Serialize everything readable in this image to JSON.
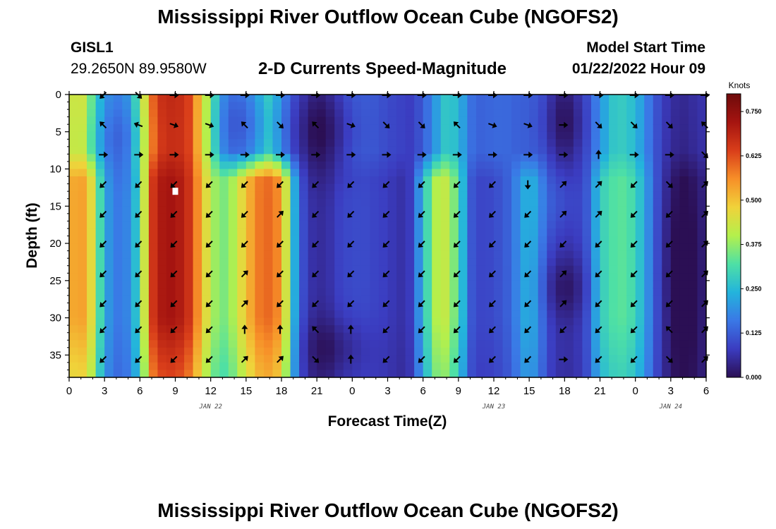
{
  "page": {
    "title": "Mississippi River Outflow Ocean Cube (NGOFS2)",
    "title_repeat": "Mississippi River Outflow Ocean Cube (NGOFS2)",
    "station_id": "GISL1",
    "station_coords": "29.2650N  89.9580W",
    "product": "2-D Currents Speed-Magnitude",
    "model_start_label": "Model Start Time",
    "model_start_time": "01/22/2022 Hour 09"
  },
  "chart_data": {
    "type": "heatmap",
    "title": "2-D Currents Speed-Magnitude",
    "xlabel": "Forecast Time(Z)",
    "ylabel": "Depth (ft)",
    "x_ticks": [
      "0",
      "3",
      "6",
      "9",
      "12",
      "15",
      "18",
      "21",
      "0",
      "3",
      "6",
      "9",
      "12",
      "15",
      "18",
      "21",
      "0",
      "3",
      "6"
    ],
    "day_labels": [
      {
        "text": "JAN 22",
        "x_index": 4
      },
      {
        "text": "JAN 23",
        "x_index": 12
      },
      {
        "text": "JAN 24",
        "x_index": 17
      }
    ],
    "y_ticks": [
      "0",
      "5",
      "10",
      "15",
      "20",
      "25",
      "30",
      "35"
    ],
    "ylim": [
      0,
      38
    ],
    "xlim_hours": [
      0,
      54
    ],
    "colorbar": {
      "unit": "Knots",
      "range": [
        0,
        0.8
      ],
      "ticks": [
        "0.000",
        "0.125",
        "0.250",
        "0.375",
        "0.500",
        "0.625",
        "0.750"
      ],
      "colors": [
        "#2b0f54",
        "#3b3cc0",
        "#3a78e6",
        "#23b4dc",
        "#4ee0a5",
        "#b4f04c",
        "#f0d23a",
        "#f78f28",
        "#d93e1a",
        "#a51410",
        "#6e0b0b"
      ]
    },
    "arrow_rows_depth_ft": [
      0,
      4,
      8,
      12,
      16,
      20,
      24,
      28,
      31.5,
      35.5
    ],
    "arrow_cols_hours": [
      3,
      6,
      9,
      12,
      15,
      18,
      21,
      24,
      27,
      30,
      33,
      36,
      39,
      42,
      45,
      48,
      51,
      54
    ],
    "speed_profiles": {
      "surface_0_9ft": [
        [
          0,
          0.42
        ],
        [
          1,
          0.45
        ],
        [
          2,
          0.33
        ],
        [
          3,
          0.2
        ],
        [
          4,
          0.17
        ],
        [
          5,
          0.2
        ],
        [
          6,
          0.35
        ],
        [
          7,
          0.6
        ],
        [
          8,
          0.68
        ],
        [
          9,
          0.68
        ],
        [
          10,
          0.66
        ],
        [
          11,
          0.52
        ],
        [
          12,
          0.35
        ],
        [
          13,
          0.2
        ],
        [
          14,
          0.16
        ],
        [
          15,
          0.18
        ],
        [
          16,
          0.24
        ],
        [
          17,
          0.3
        ],
        [
          18,
          0.2
        ],
        [
          19,
          0.12
        ],
        [
          20,
          0.08
        ],
        [
          21,
          0.05
        ],
        [
          22,
          0.07
        ],
        [
          23,
          0.1
        ],
        [
          24,
          0.13
        ],
        [
          25,
          0.13
        ],
        [
          26,
          0.12
        ],
        [
          27,
          0.1
        ],
        [
          28,
          0.09
        ],
        [
          29,
          0.08
        ],
        [
          30,
          0.12
        ],
        [
          31,
          0.2
        ],
        [
          32,
          0.28
        ],
        [
          33,
          0.25
        ],
        [
          34,
          0.15
        ],
        [
          35,
          0.13
        ],
        [
          36,
          0.14
        ],
        [
          37,
          0.14
        ],
        [
          38,
          0.13
        ],
        [
          39,
          0.13
        ],
        [
          40,
          0.12
        ],
        [
          41,
          0.08
        ],
        [
          42,
          0.05
        ],
        [
          43,
          0.08
        ],
        [
          44,
          0.12
        ],
        [
          45,
          0.2
        ],
        [
          46,
          0.27
        ],
        [
          47,
          0.28
        ],
        [
          48,
          0.25
        ],
        [
          49,
          0.17
        ],
        [
          50,
          0.1
        ],
        [
          51,
          0.06
        ],
        [
          52,
          0.05
        ],
        [
          53,
          0.06
        ],
        [
          54,
          0.07
        ]
      ],
      "deep_10_38ft": [
        [
          0,
          0.52
        ],
        [
          1,
          0.55
        ],
        [
          2,
          0.45
        ],
        [
          3,
          0.22
        ],
        [
          4,
          0.16
        ],
        [
          5,
          0.18
        ],
        [
          6,
          0.3
        ],
        [
          7,
          0.65
        ],
        [
          8,
          0.72
        ],
        [
          9,
          0.72
        ],
        [
          10,
          0.68
        ],
        [
          11,
          0.55
        ],
        [
          12,
          0.4
        ],
        [
          13,
          0.35
        ],
        [
          14,
          0.4
        ],
        [
          15,
          0.5
        ],
        [
          16,
          0.58
        ],
        [
          17,
          0.6
        ],
        [
          18,
          0.55
        ],
        [
          19,
          0.25
        ],
        [
          20,
          0.08
        ],
        [
          21,
          0.05
        ],
        [
          22,
          0.06
        ],
        [
          23,
          0.09
        ],
        [
          24,
          0.1
        ],
        [
          25,
          0.1
        ],
        [
          26,
          0.09
        ],
        [
          27,
          0.08
        ],
        [
          28,
          0.06
        ],
        [
          29,
          0.08
        ],
        [
          30,
          0.25
        ],
        [
          31,
          0.4
        ],
        [
          32,
          0.42
        ],
        [
          33,
          0.32
        ],
        [
          34,
          0.12
        ],
        [
          35,
          0.09
        ],
        [
          36,
          0.1
        ],
        [
          37,
          0.12
        ],
        [
          38,
          0.18
        ],
        [
          39,
          0.25
        ],
        [
          40,
          0.16
        ],
        [
          41,
          0.08
        ],
        [
          42,
          0.06
        ],
        [
          43,
          0.07
        ],
        [
          44,
          0.12
        ],
        [
          45,
          0.28
        ],
        [
          46,
          0.32
        ],
        [
          47,
          0.33
        ],
        [
          48,
          0.3
        ],
        [
          49,
          0.2
        ],
        [
          50,
          0.1
        ],
        [
          51,
          0.04
        ],
        [
          52,
          0.02
        ],
        [
          53,
          0.03
        ],
        [
          54,
          0.05
        ]
      ]
    },
    "arrow_directions_deg": {
      "row_0ft": [
        135,
        45,
        0,
        0,
        0,
        0,
        0,
        0,
        0,
        0,
        0,
        0,
        0,
        0,
        0,
        0,
        0,
        0
      ],
      "row_4ft": [
        225,
        200,
        20,
        20,
        225,
        45,
        225,
        20,
        45,
        45,
        225,
        20,
        20,
        0,
        45,
        45,
        45,
        225
      ],
      "row_8ft": [
        0,
        0,
        0,
        0,
        0,
        0,
        0,
        0,
        0,
        0,
        0,
        0,
        0,
        0,
        270,
        0,
        0,
        45
      ],
      "row_12ft": [
        135,
        135,
        135,
        135,
        135,
        135,
        135,
        135,
        135,
        135,
        135,
        135,
        90,
        315,
        315,
        135,
        45,
        315
      ],
      "row_16ft": [
        135,
        135,
        135,
        135,
        135,
        315,
        135,
        135,
        135,
        135,
        135,
        135,
        135,
        315,
        315,
        135,
        135,
        315
      ],
      "row_20ft": [
        135,
        135,
        135,
        135,
        135,
        135,
        135,
        135,
        135,
        135,
        135,
        135,
        135,
        135,
        135,
        135,
        135,
        315
      ],
      "row_24ft": [
        135,
        135,
        135,
        135,
        315,
        135,
        135,
        135,
        135,
        135,
        135,
        135,
        135,
        315,
        135,
        135,
        135,
        315
      ],
      "row_28ft": [
        135,
        135,
        135,
        135,
        315,
        135,
        135,
        135,
        135,
        135,
        135,
        135,
        135,
        315,
        135,
        135,
        135,
        315
      ],
      "row_31_5ft": [
        135,
        135,
        135,
        135,
        270,
        270,
        225,
        270,
        135,
        135,
        135,
        135,
        135,
        135,
        135,
        135,
        225,
        315
      ],
      "row_35_5ft": [
        135,
        135,
        135,
        135,
        315,
        315,
        45,
        270,
        135,
        135,
        135,
        135,
        135,
        0,
        135,
        135,
        45,
        315
      ]
    },
    "marker": {
      "hour": 9,
      "depth_ft": 13
    }
  }
}
